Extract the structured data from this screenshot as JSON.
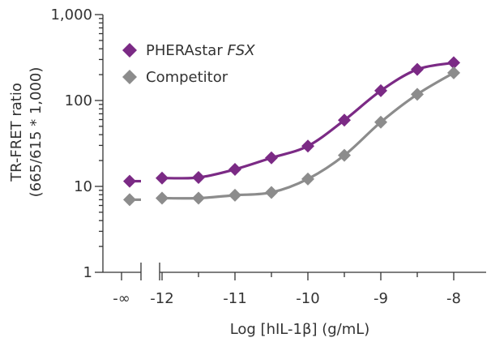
{
  "chart_data": {
    "type": "line",
    "xlabel": "Log [hIL-1β] (g/mL)",
    "ylabel_lines": [
      "TR-FRET ratio",
      "(665/615 * 1,000)"
    ],
    "y_scale": "log",
    "ylim": [
      1,
      1000
    ],
    "xlim": [
      -12.8,
      -7.5
    ],
    "x_ticks": [
      {
        "value": "-inf",
        "label": "-∞"
      },
      {
        "value": -12,
        "label": "-12"
      },
      {
        "value": -11,
        "label": "-11"
      },
      {
        "value": -10,
        "label": "-10"
      },
      {
        "value": -9,
        "label": "-9"
      },
      {
        "value": -8,
        "label": "-8"
      }
    ],
    "y_ticks": [
      {
        "value": 1,
        "label": "1"
      },
      {
        "value": 10,
        "label": "10"
      },
      {
        "value": 100,
        "label": "100"
      },
      {
        "value": 1000,
        "label": "1,000"
      }
    ],
    "axis_break": "between -∞ and -12 on the x axis",
    "legend_position": "top-left",
    "series": [
      {
        "name_main": "PHERAstar ",
        "name_italic": "FSX",
        "color": "#7b2a85",
        "zero_point": {
          "x": "-inf",
          "y": 11.5
        },
        "points": [
          {
            "x": -12.0,
            "y": 12.5
          },
          {
            "x": -11.5,
            "y": 12.7
          },
          {
            "x": -11.0,
            "y": 15.8
          },
          {
            "x": -10.5,
            "y": 21.5
          },
          {
            "x": -10.0,
            "y": 29.5
          },
          {
            "x": -9.5,
            "y": 59
          },
          {
            "x": -9.0,
            "y": 130
          },
          {
            "x": -8.5,
            "y": 230
          },
          {
            "x": -8.0,
            "y": 275
          }
        ]
      },
      {
        "name_main": "Competitor",
        "name_italic": "",
        "color": "#8c8c8c",
        "zero_point": {
          "x": "-inf",
          "y": 7.0
        },
        "points": [
          {
            "x": -12.0,
            "y": 7.3
          },
          {
            "x": -11.5,
            "y": 7.3
          },
          {
            "x": -11.0,
            "y": 7.9
          },
          {
            "x": -10.5,
            "y": 8.5
          },
          {
            "x": -10.0,
            "y": 12.2
          },
          {
            "x": -9.5,
            "y": 23
          },
          {
            "x": -9.0,
            "y": 56
          },
          {
            "x": -8.5,
            "y": 118
          },
          {
            "x": -8.0,
            "y": 210
          }
        ]
      }
    ]
  }
}
